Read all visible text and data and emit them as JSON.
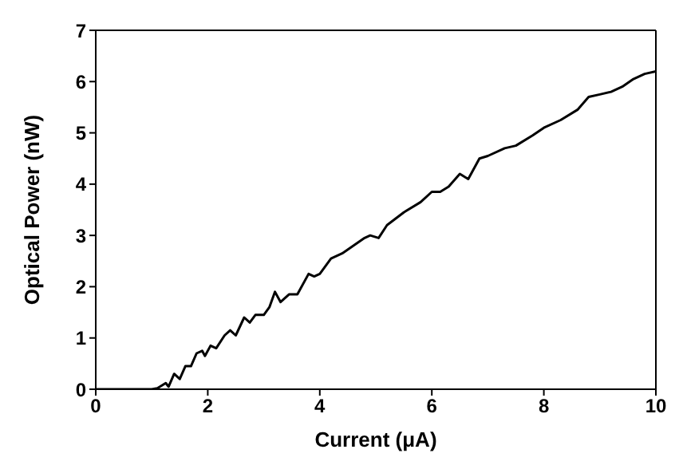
{
  "chart_data": {
    "type": "line",
    "xlabel": "Current (μA)",
    "ylabel": "Optical Power (nW)",
    "xlim": [
      0,
      10
    ],
    "xticks": [
      0,
      2,
      4,
      6,
      8,
      10
    ],
    "ylim": [
      0,
      7
    ],
    "yticks": [
      0,
      1,
      2,
      3,
      4,
      5,
      6,
      7
    ],
    "legend": false,
    "marker": "none",
    "line_style": "solid",
    "series": [
      {
        "color": "#000000",
        "x": [
          0,
          1,
          1.1,
          1.25,
          1.3,
          1.4,
          1.5,
          1.6,
          1.7,
          1.8,
          1.9,
          1.95,
          2.05,
          2.15,
          2.3,
          2.4,
          2.5,
          2.65,
          2.75,
          2.85,
          3.0,
          3.1,
          3.2,
          3.3,
          3.45,
          3.6,
          3.8,
          3.9,
          4.0,
          4.2,
          4.4,
          4.6,
          4.8,
          4.9,
          5.05,
          5.2,
          5.5,
          5.8,
          6.0,
          6.15,
          6.3,
          6.5,
          6.65,
          6.85,
          7.0,
          7.3,
          7.5,
          7.8,
          8.0,
          8.3,
          8.6,
          8.8,
          9.0,
          9.2,
          9.4,
          9.6,
          9.8,
          10
        ],
        "values": [
          0,
          0,
          0.02,
          0.12,
          0.05,
          0.3,
          0.2,
          0.45,
          0.45,
          0.7,
          0.75,
          0.65,
          0.85,
          0.8,
          1.05,
          1.15,
          1.05,
          1.4,
          1.3,
          1.45,
          1.45,
          1.6,
          1.9,
          1.7,
          1.85,
          1.85,
          2.25,
          2.2,
          2.25,
          2.55,
          2.65,
          2.8,
          2.95,
          3.0,
          2.95,
          3.2,
          3.45,
          3.65,
          3.85,
          3.85,
          3.95,
          4.2,
          4.1,
          4.5,
          4.55,
          4.7,
          4.75,
          4.95,
          5.1,
          5.25,
          5.45,
          5.7,
          5.75,
          5.8,
          5.9,
          6.05,
          6.15,
          6.2
        ]
      }
    ]
  }
}
